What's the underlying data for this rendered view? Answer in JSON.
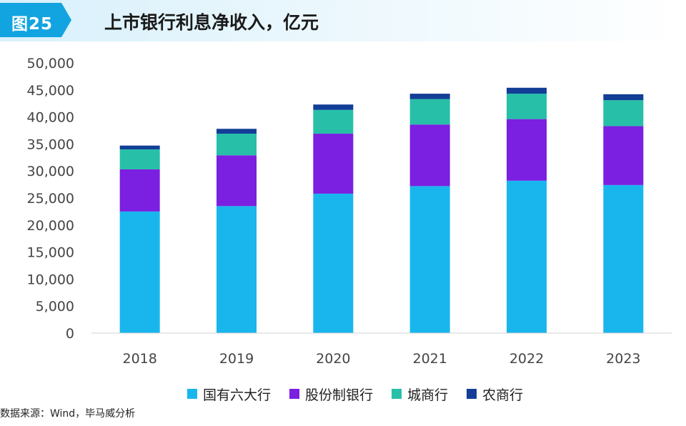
{
  "header": {
    "figure_label": "图25",
    "title": "上市银行利息净收入，亿元"
  },
  "source": "数据来源：Wind，毕马威分析",
  "colors": {
    "header_badge": "#12a4e0",
    "series": [
      "#19b6ee",
      "#7b1fe0",
      "#27bfa8",
      "#123e96"
    ]
  },
  "chart_data": {
    "type": "bar",
    "stacked": true,
    "title": "上市银行利息净收入，亿元",
    "categories": [
      "2018",
      "2019",
      "2020",
      "2021",
      "2022",
      "2023"
    ],
    "series": [
      {
        "name": "国有六大行",
        "values": [
          22500,
          23500,
          25800,
          27200,
          28200,
          27400
        ]
      },
      {
        "name": "股份制银行",
        "values": [
          7800,
          9400,
          11100,
          11400,
          11400,
          10900
        ]
      },
      {
        "name": "城商行",
        "values": [
          3700,
          4000,
          4400,
          4700,
          4700,
          4800
        ]
      },
      {
        "name": "农商行",
        "values": [
          700,
          900,
          1000,
          1000,
          1100,
          1100
        ]
      }
    ],
    "ylim": [
      0,
      50000
    ],
    "yticks": [
      "0",
      "5,000",
      "10,000",
      "15,000",
      "20,000",
      "25,000",
      "30,000",
      "35,000",
      "40,000",
      "45,000",
      "50,000"
    ],
    "ytick_values": [
      0,
      5000,
      10000,
      15000,
      20000,
      25000,
      30000,
      35000,
      40000,
      45000,
      50000
    ],
    "legend_position": "bottom",
    "grid": false
  }
}
